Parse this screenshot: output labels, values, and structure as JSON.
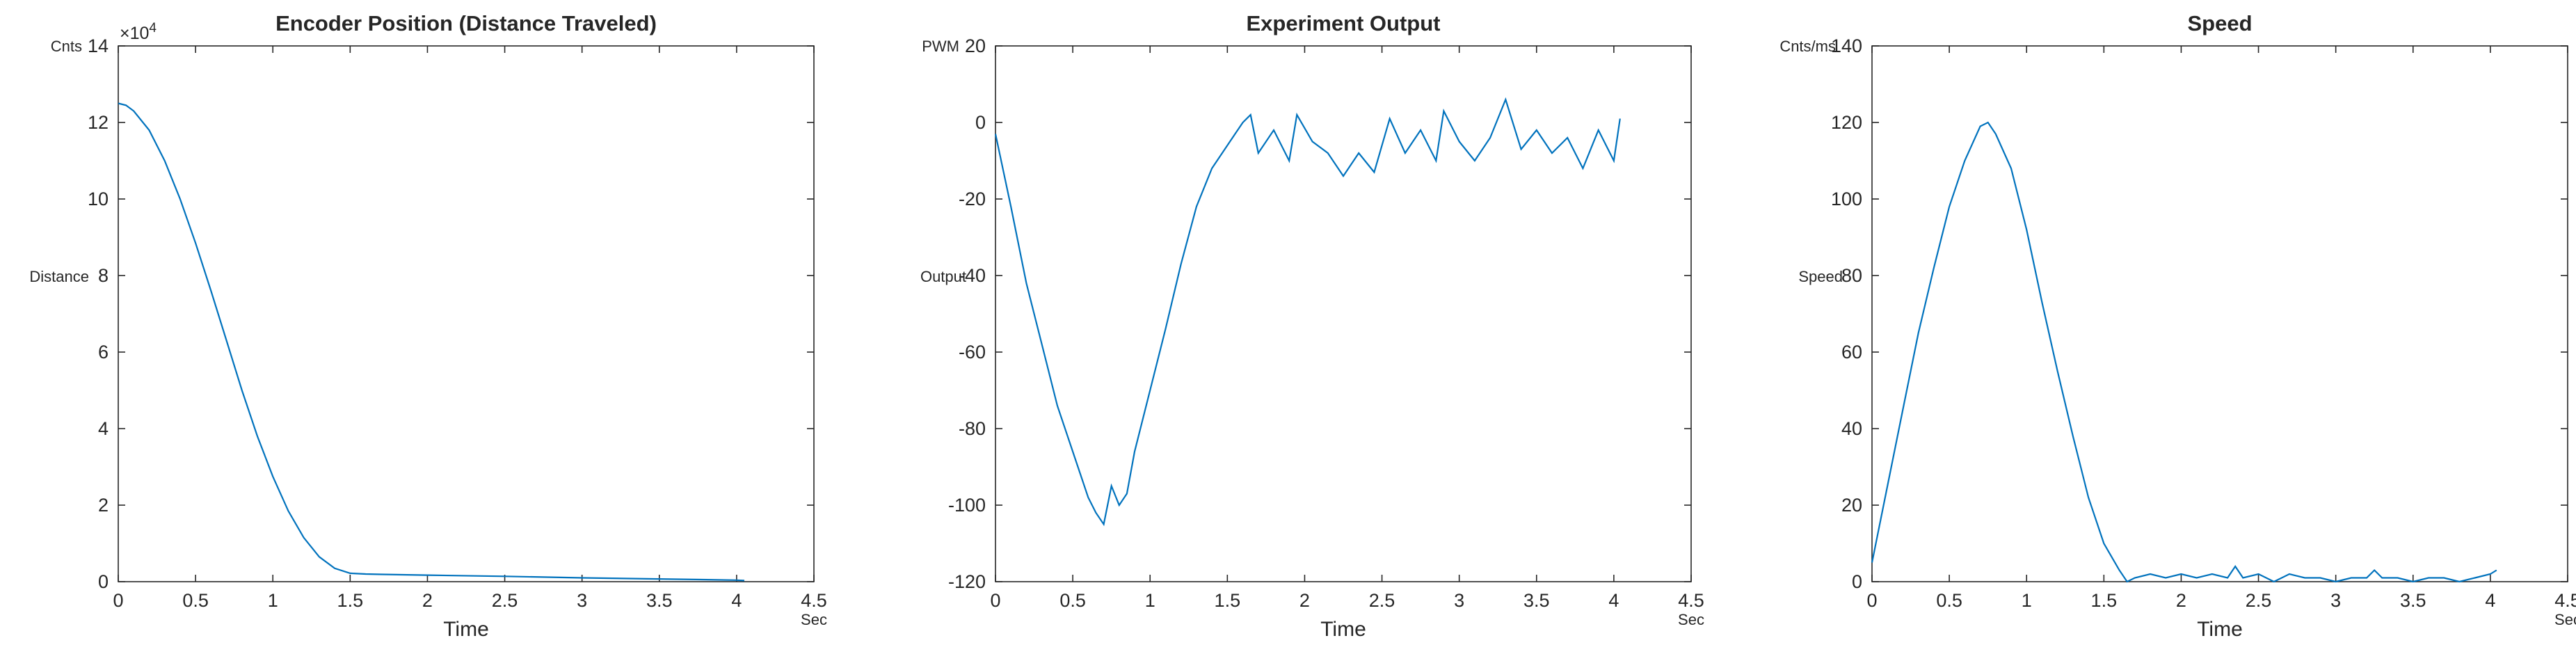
{
  "colors": {
    "line": "#0072BD",
    "axis": "#262626",
    "background": "#ffffff"
  },
  "chart_data": [
    {
      "type": "line",
      "title": "Encoder Position (Distance Traveled)",
      "xlabel": "Time",
      "ylabel": "Distance",
      "x_unit": "Sec",
      "y_unit": "Cnts",
      "y_multiplier": "×10",
      "y_multiplier_exp": "4",
      "xlim": [
        0,
        4.5
      ],
      "ylim": [
        0,
        14
      ],
      "xticks": [
        "0",
        "0.5",
        "1",
        "1.5",
        "2",
        "2.5",
        "3",
        "3.5",
        "4",
        "4.5"
      ],
      "yticks": [
        "0",
        "2",
        "4",
        "6",
        "8",
        "10",
        "12",
        "14"
      ],
      "grid": false,
      "series": [
        {
          "x": [
            0,
            0.05,
            0.1,
            0.2,
            0.3,
            0.4,
            0.5,
            0.6,
            0.7,
            0.8,
            0.9,
            1.0,
            1.1,
            1.2,
            1.3,
            1.4,
            1.5,
            1.6,
            1.7,
            2.0,
            2.5,
            3.0,
            3.5,
            4.0,
            4.05
          ],
          "y": [
            12.5,
            12.45,
            12.3,
            11.8,
            11.0,
            10.0,
            8.85,
            7.6,
            6.3,
            5.0,
            3.8,
            2.75,
            1.85,
            1.15,
            0.65,
            0.35,
            0.22,
            0.2,
            0.19,
            0.17,
            0.14,
            0.1,
            0.07,
            0.04,
            0.03
          ]
        }
      ]
    },
    {
      "type": "line",
      "title": "Experiment Output",
      "xlabel": "Time",
      "ylabel": "Output",
      "x_unit": "Sec",
      "y_unit": "PWM",
      "xlim": [
        0,
        4.5
      ],
      "ylim": [
        -120,
        20
      ],
      "xticks": [
        "0",
        "0.5",
        "1",
        "1.5",
        "2",
        "2.5",
        "3",
        "3.5",
        "4",
        "4.5"
      ],
      "yticks": [
        "-120",
        "-100",
        "-80",
        "-60",
        "-40",
        "-20",
        "0",
        "20"
      ],
      "grid": false,
      "series": [
        {
          "x": [
            0,
            0.1,
            0.2,
            0.3,
            0.4,
            0.5,
            0.6,
            0.65,
            0.7,
            0.75,
            0.8,
            0.85,
            0.9,
            1.0,
            1.1,
            1.2,
            1.3,
            1.4,
            1.5,
            1.55,
            1.6,
            1.65,
            1.7,
            1.8,
            1.9,
            1.95,
            2.05,
            2.15,
            2.25,
            2.35,
            2.45,
            2.55,
            2.65,
            2.75,
            2.85,
            2.9,
            3.0,
            3.1,
            3.2,
            3.3,
            3.4,
            3.5,
            3.6,
            3.7,
            3.8,
            3.9,
            4.0,
            4.04
          ],
          "y": [
            -3,
            -22,
            -42,
            -58,
            -74,
            -86,
            -98,
            -102,
            -105,
            -95,
            -100,
            -97,
            -86,
            -70,
            -54,
            -37,
            -22,
            -12,
            -6,
            -3,
            0,
            2,
            -8,
            -2,
            -10,
            2,
            -5,
            -8,
            -14,
            -8,
            -13,
            1,
            -8,
            -2,
            -10,
            3,
            -5,
            -10,
            -4,
            6,
            -7,
            -2,
            -8,
            -4,
            -12,
            -2,
            -10,
            1
          ]
        }
      ]
    },
    {
      "type": "line",
      "title": "Speed",
      "xlabel": "Time",
      "ylabel": "Speed",
      "x_unit": "Sec",
      "y_unit": "Cnts/ms",
      "xlim": [
        0,
        4.5
      ],
      "ylim": [
        0,
        140
      ],
      "xticks": [
        "0",
        "0.5",
        "1",
        "1.5",
        "2",
        "2.5",
        "3",
        "3.5",
        "4",
        "4.5"
      ],
      "yticks": [
        "0",
        "20",
        "40",
        "60",
        "80",
        "100",
        "120",
        "140"
      ],
      "grid": false,
      "series": [
        {
          "x": [
            0,
            0.1,
            0.2,
            0.3,
            0.4,
            0.5,
            0.6,
            0.7,
            0.75,
            0.8,
            0.9,
            1.0,
            1.1,
            1.2,
            1.3,
            1.4,
            1.5,
            1.6,
            1.65,
            1.7,
            1.8,
            1.9,
            2.0,
            2.1,
            2.2,
            2.3,
            2.35,
            2.4,
            2.5,
            2.6,
            2.7,
            2.8,
            2.9,
            3.0,
            3.1,
            3.2,
            3.25,
            3.3,
            3.4,
            3.5,
            3.6,
            3.7,
            3.8,
            3.9,
            4.0,
            4.04
          ],
          "y": [
            5,
            25,
            45,
            65,
            82,
            98,
            110,
            119,
            120,
            117,
            108,
            92,
            73,
            55,
            38,
            22,
            10,
            3,
            0,
            1,
            2,
            1,
            2,
            1,
            2,
            1,
            4,
            1,
            2,
            0,
            2,
            1,
            1,
            0,
            1,
            1,
            3,
            1,
            1,
            0,
            1,
            1,
            0,
            1,
            2,
            3
          ]
        }
      ]
    }
  ]
}
